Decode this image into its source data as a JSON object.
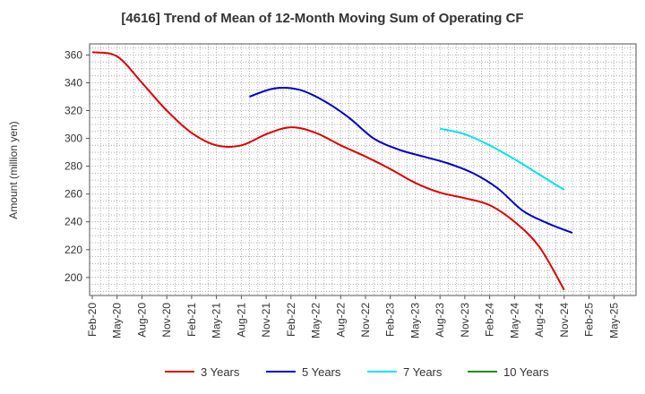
{
  "chart_data": {
    "type": "line",
    "title": "[4616]  Trend of Mean of 12-Month Moving Sum of Operating CF",
    "xlabel": "",
    "ylabel": "Amount (million yen)",
    "ylim": [
      187,
      368
    ],
    "yticks": [
      200,
      220,
      240,
      260,
      280,
      300,
      320,
      340,
      360
    ],
    "grid": true,
    "legend_position": "bottom",
    "x_tick_labels": [
      "Feb-20",
      "May-20",
      "Aug-20",
      "Nov-20",
      "Feb-21",
      "May-21",
      "Aug-21",
      "Nov-21",
      "Feb-22",
      "May-22",
      "Aug-22",
      "Nov-22",
      "Feb-23",
      "May-23",
      "Aug-23",
      "Nov-23",
      "Feb-24",
      "May-24",
      "Aug-24",
      "Nov-24",
      "Feb-25",
      "May-25"
    ],
    "series": [
      {
        "name": "3 Years",
        "color": "#e00000",
        "start_index": 0,
        "values": [
          362,
          359,
          340,
          320,
          304,
          295,
          295,
          303,
          308,
          304,
          295,
          287,
          278,
          268,
          261,
          257,
          252,
          240,
          222,
          191
        ]
      },
      {
        "name": "5 Years",
        "color": "#0000cc",
        "start_index": 6.33,
        "values": [
          330,
          336,
          335,
          327,
          315,
          300,
          292,
          287,
          282,
          275,
          264,
          248,
          239,
          232
        ]
      },
      {
        "name": "7 Years",
        "color": "#00e5ee",
        "start_index": 14.0,
        "values": [
          307,
          303,
          295,
          285,
          274,
          263
        ]
      },
      {
        "name": "10 Years",
        "color": "#228b22",
        "start_index": 0,
        "values": []
      }
    ]
  }
}
